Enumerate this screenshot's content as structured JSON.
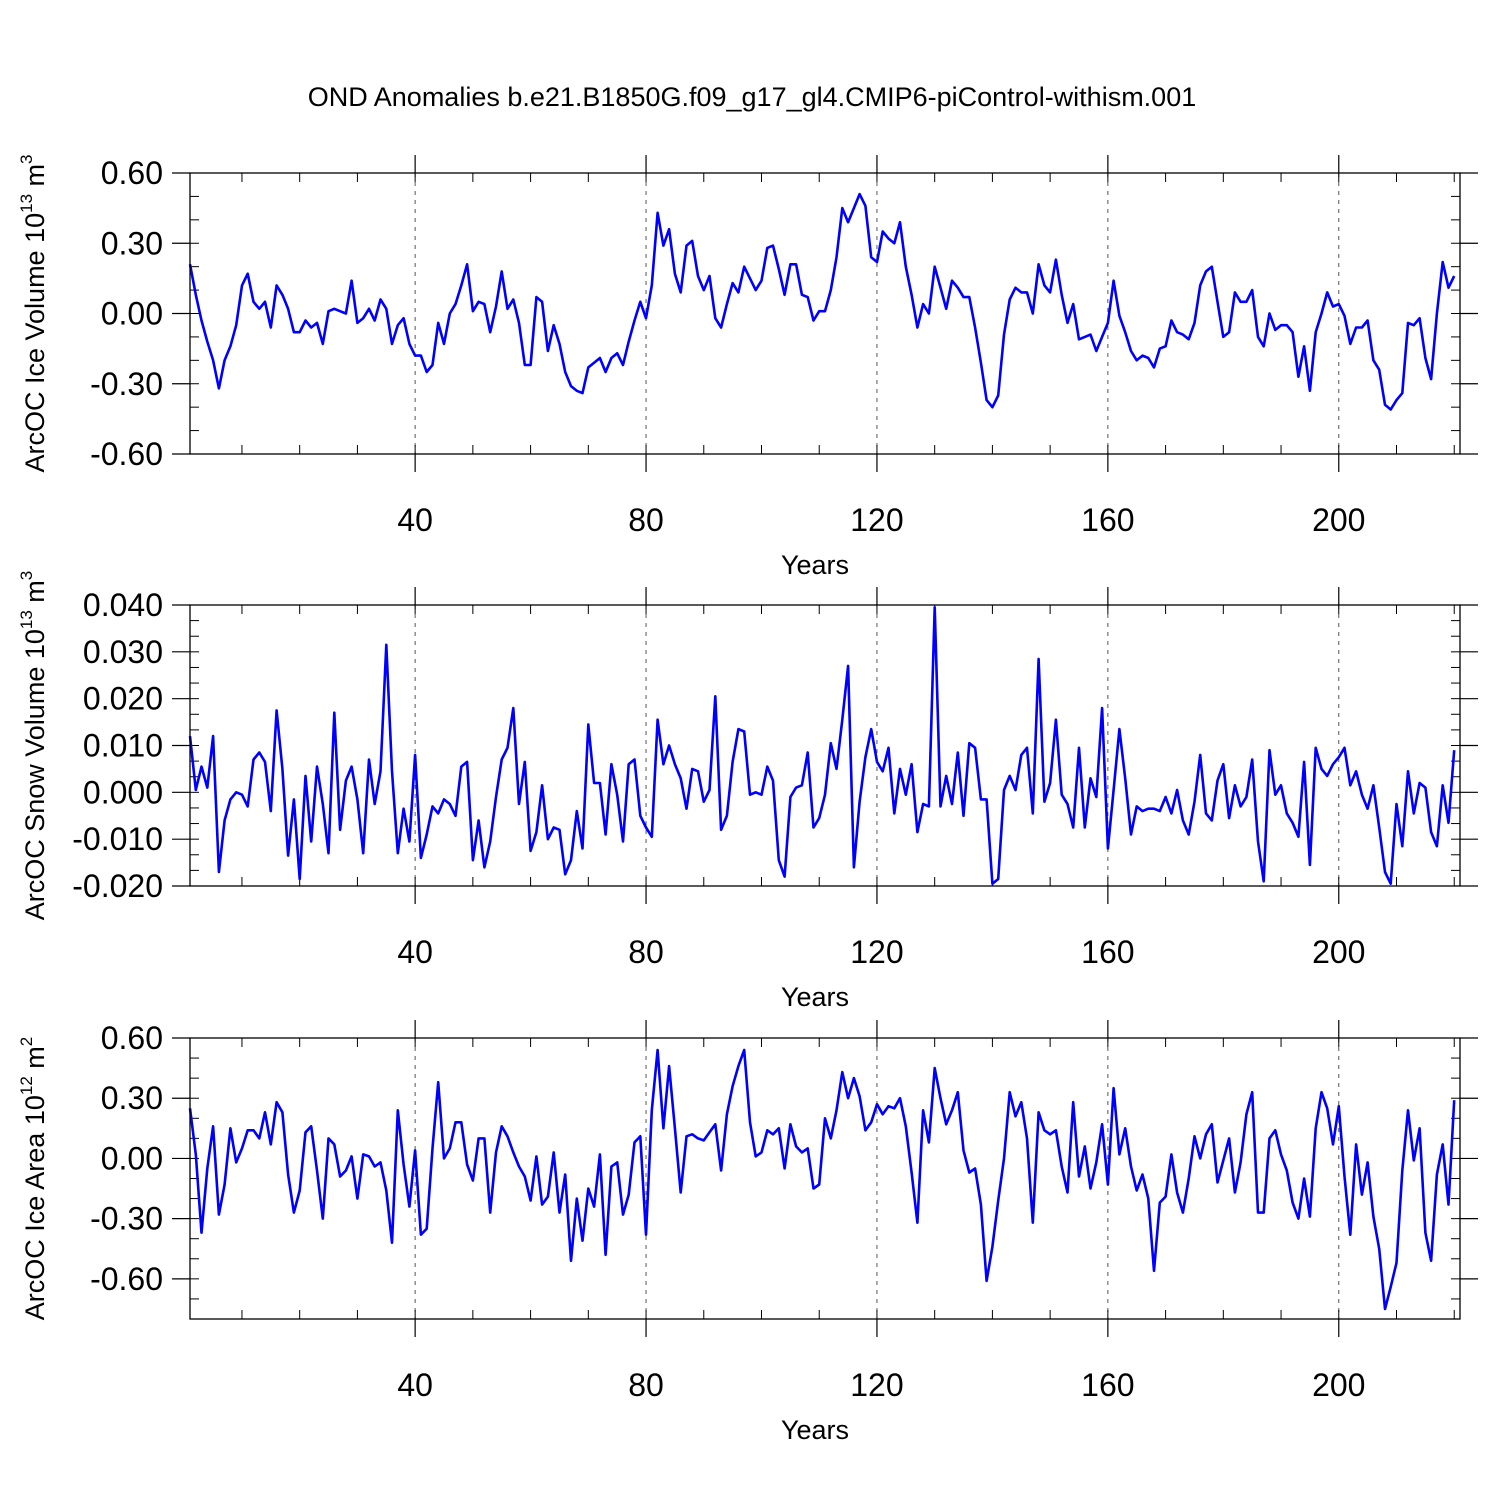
{
  "title": "OND Anomalies b.e21.B1850G.f09_g17_gl4.CMIP6-piControl-withism.001",
  "chart_data": [
    {
      "type": "line",
      "ylabel": "ArcOC Ice Volume 10",
      "ylabel_exp": "13",
      "ylabel_unit": " m",
      "ylabel_unit_exp": "3",
      "xlabel": "Years",
      "xlim": [
        1,
        221
      ],
      "ylim": [
        -0.6,
        0.6
      ],
      "yticks": [
        -0.6,
        -0.3,
        0.0,
        0.3,
        0.6
      ],
      "ytick_labels": [
        "-0.60",
        "-0.30",
        "0.00",
        "0.30",
        "0.60"
      ],
      "xticks": [
        40,
        80,
        120,
        160,
        200
      ],
      "xtick_labels": [
        "40",
        "80",
        "120",
        "160",
        "200"
      ],
      "grid_x": [
        40,
        80,
        120,
        160,
        200
      ],
      "series": [
        {
          "name": "Ice Volume",
          "color": "#0000ff",
          "x_start": 1,
          "values": [
            0.21,
            0.08,
            -0.03,
            -0.12,
            -0.2,
            -0.32,
            -0.2,
            -0.14,
            -0.05,
            0.12,
            0.17,
            0.05,
            0.02,
            0.05,
            -0.06,
            0.12,
            0.08,
            0.02,
            -0.08,
            -0.08,
            -0.03,
            -0.06,
            -0.04,
            -0.13,
            0.01,
            0.02,
            0.01,
            0.0,
            0.14,
            -0.04,
            -0.02,
            0.02,
            -0.03,
            0.06,
            0.02,
            -0.13,
            -0.05,
            -0.02,
            -0.13,
            -0.18,
            -0.18,
            -0.25,
            -0.22,
            -0.04,
            -0.13,
            0.0,
            0.04,
            0.12,
            0.21,
            0.01,
            0.05,
            0.04,
            -0.08,
            0.03,
            0.18,
            0.02,
            0.06,
            -0.04,
            -0.22,
            -0.22,
            0.07,
            0.05,
            -0.16,
            -0.05,
            -0.13,
            -0.25,
            -0.31,
            -0.33,
            -0.34,
            -0.23,
            -0.21,
            -0.19,
            -0.25,
            -0.19,
            -0.17,
            -0.22,
            -0.12,
            -0.03,
            0.05,
            -0.02,
            0.12,
            0.43,
            0.29,
            0.36,
            0.17,
            0.09,
            0.29,
            0.31,
            0.16,
            0.1,
            0.16,
            -0.02,
            -0.06,
            0.04,
            0.13,
            0.09,
            0.2,
            0.15,
            0.1,
            0.14,
            0.28,
            0.29,
            0.19,
            0.08,
            0.21,
            0.21,
            0.08,
            0.07,
            -0.03,
            0.01,
            0.01,
            0.1,
            0.24,
            0.45,
            0.39,
            0.45,
            0.51,
            0.46,
            0.24,
            0.22,
            0.35,
            0.32,
            0.3,
            0.39,
            0.2,
            0.08,
            -0.06,
            0.04,
            0.0,
            0.2,
            0.11,
            0.02,
            0.14,
            0.11,
            0.07,
            0.07,
            -0.06,
            -0.21,
            -0.37,
            -0.4,
            -0.35,
            -0.09,
            0.06,
            0.11,
            0.09,
            0.09,
            0.0,
            0.21,
            0.12,
            0.09,
            0.23,
            0.08,
            -0.04,
            0.04,
            -0.11,
            -0.1,
            -0.09,
            -0.16,
            -0.1,
            -0.04,
            0.14,
            -0.01,
            -0.08,
            -0.16,
            -0.2,
            -0.18,
            -0.19,
            -0.23,
            -0.15,
            -0.14,
            -0.03,
            -0.08,
            -0.09,
            -0.11,
            -0.04,
            0.12,
            0.18,
            0.2,
            0.05,
            -0.1,
            -0.08,
            0.09,
            0.05,
            0.05,
            0.1,
            -0.1,
            -0.14,
            0.0,
            -0.07,
            -0.05,
            -0.05,
            -0.08,
            -0.27,
            -0.14,
            -0.33,
            -0.08,
            0.0,
            0.09,
            0.03,
            0.04,
            -0.01,
            -0.13,
            -0.06,
            -0.06,
            -0.03,
            -0.2,
            -0.24,
            -0.39,
            -0.41,
            -0.37,
            -0.34,
            -0.04,
            -0.05,
            -0.02,
            -0.19,
            -0.28,
            0.0,
            0.22,
            0.11,
            0.16
          ]
        }
      ]
    },
    {
      "type": "line",
      "ylabel": "ArcOC Snow Volume 10",
      "ylabel_exp": "13",
      "ylabel_unit": " m",
      "ylabel_unit_exp": "3",
      "xlabel": "Years",
      "xlim": [
        1,
        221
      ],
      "ylim": [
        -0.02,
        0.04
      ],
      "yticks": [
        -0.02,
        -0.01,
        0.0,
        0.01,
        0.02,
        0.03,
        0.04
      ],
      "ytick_labels": [
        "-0.020",
        "-0.010",
        "0.000",
        "0.010",
        "0.020",
        "0.030",
        "0.040"
      ],
      "xticks": [
        40,
        80,
        120,
        160,
        200
      ],
      "xtick_labels": [
        "40",
        "80",
        "120",
        "160",
        "200"
      ],
      "grid_x": [
        40,
        80,
        120,
        160,
        200
      ],
      "series": [
        {
          "name": "Snow Volume",
          "color": "#0000ff",
          "x_start": 1,
          "values": [
            0.012,
            0.0005,
            0.0055,
            0.001,
            0.012,
            -0.017,
            -0.006,
            -0.0015,
            0.0,
            -0.0005,
            -0.003,
            0.007,
            0.0085,
            0.0065,
            -0.004,
            0.0175,
            0.005,
            -0.0135,
            -0.0015,
            -0.0185,
            0.0035,
            -0.0105,
            0.0055,
            -0.0025,
            -0.013,
            0.017,
            -0.008,
            0.0025,
            0.0055,
            -0.0015,
            -0.013,
            0.007,
            -0.0025,
            0.0045,
            0.0315,
            0.0045,
            -0.013,
            -0.0035,
            -0.0105,
            0.008,
            -0.014,
            -0.009,
            -0.003,
            -0.0045,
            -0.0015,
            -0.0025,
            -0.005,
            0.0055,
            0.0065,
            -0.0145,
            -0.006,
            -0.016,
            -0.0105,
            -0.001,
            0.007,
            0.0095,
            0.018,
            -0.0025,
            0.0065,
            -0.0125,
            -0.0085,
            0.0015,
            -0.01,
            -0.0075,
            -0.008,
            -0.0175,
            -0.0145,
            -0.004,
            -0.012,
            0.0145,
            0.002,
            0.002,
            -0.009,
            0.006,
            -0.0005,
            -0.0105,
            0.006,
            0.007,
            -0.005,
            -0.0075,
            -0.0095,
            0.0155,
            0.006,
            0.01,
            0.006,
            0.003,
            -0.0035,
            0.005,
            0.0045,
            -0.002,
            0.0005,
            0.0205,
            -0.008,
            -0.005,
            0.0065,
            0.0135,
            0.013,
            -0.0005,
            0.0,
            -0.0005,
            0.0055,
            0.0025,
            -0.0145,
            -0.018,
            -0.001,
            0.001,
            0.0015,
            0.0085,
            -0.0075,
            -0.0055,
            -0.0005,
            0.0105,
            0.005,
            0.0155,
            0.027,
            -0.016,
            -0.002,
            0.0075,
            0.0135,
            0.0065,
            0.0045,
            0.0095,
            -0.0045,
            0.005,
            -0.0005,
            0.006,
            -0.0085,
            -0.0025,
            -0.003,
            0.0395,
            -0.003,
            0.0035,
            -0.0025,
            0.0085,
            -0.005,
            0.0105,
            0.0095,
            -0.0015,
            -0.0015,
            -0.0195,
            -0.0185,
            0.0005,
            0.0035,
            0.0005,
            0.008,
            0.0095,
            -0.0045,
            0.0285,
            -0.002,
            0.002,
            0.0155,
            -0.0005,
            -0.0025,
            -0.0075,
            0.0095,
            -0.0075,
            0.003,
            -0.001,
            0.018,
            -0.012,
            0.0005,
            0.0135,
            0.003,
            -0.009,
            -0.003,
            -0.004,
            -0.0035,
            -0.0035,
            -0.004,
            -0.001,
            -0.0045,
            0.0005,
            -0.006,
            -0.009,
            -0.002,
            0.008,
            -0.0045,
            -0.006,
            0.0025,
            0.006,
            -0.0055,
            0.0015,
            -0.003,
            -0.001,
            0.007,
            -0.0105,
            -0.019,
            0.009,
            -0.0005,
            0.0015,
            -0.0045,
            -0.0065,
            -0.0095,
            0.0065,
            -0.0155,
            0.0095,
            0.005,
            0.0035,
            0.006,
            0.0075,
            0.0095,
            0.0015,
            0.0045,
            -0.0005,
            -0.0035,
            0.0015,
            -0.0075,
            -0.017,
            -0.0195,
            -0.0025,
            -0.0115,
            0.0045,
            -0.0045,
            0.002,
            0.001,
            -0.0085,
            -0.0115,
            0.0015,
            -0.0065,
            0.009
          ]
        }
      ]
    },
    {
      "type": "line",
      "ylabel": "ArcOC Ice Area 10",
      "ylabel_exp": "12",
      "ylabel_unit": " m",
      "ylabel_unit_exp": "2",
      "xlabel": "Years",
      "xlim": [
        1,
        221
      ],
      "ylim": [
        -0.8,
        0.6
      ],
      "yticks": [
        -0.6,
        -0.3,
        0.0,
        0.3,
        0.6
      ],
      "ytick_labels": [
        "-0.60",
        "-0.30",
        "0.00",
        "0.30",
        "0.60"
      ],
      "xticks": [
        40,
        80,
        120,
        160,
        200
      ],
      "xtick_labels": [
        "40",
        "80",
        "120",
        "160",
        "200"
      ],
      "grid_x": [
        40,
        80,
        120,
        160,
        200
      ],
      "series": [
        {
          "name": "Ice Area",
          "color": "#0000ff",
          "x_start": 1,
          "values": [
            0.25,
            0.02,
            -0.37,
            -0.05,
            0.16,
            -0.28,
            -0.13,
            0.15,
            -0.02,
            0.05,
            0.14,
            0.14,
            0.1,
            0.23,
            0.07,
            0.28,
            0.23,
            -0.08,
            -0.27,
            -0.16,
            0.13,
            0.16,
            -0.06,
            -0.3,
            0.1,
            0.07,
            -0.09,
            -0.06,
            0.01,
            -0.2,
            0.02,
            0.01,
            -0.04,
            -0.02,
            -0.16,
            -0.42,
            0.24,
            -0.03,
            -0.24,
            0.04,
            -0.38,
            -0.35,
            0.05,
            0.38,
            0.0,
            0.05,
            0.18,
            0.18,
            -0.03,
            -0.11,
            0.1,
            0.1,
            -0.27,
            0.03,
            0.16,
            0.11,
            0.03,
            -0.04,
            -0.09,
            -0.21,
            0.01,
            -0.23,
            -0.19,
            0.03,
            -0.27,
            -0.08,
            -0.51,
            -0.2,
            -0.41,
            -0.15,
            -0.24,
            0.02,
            -0.48,
            -0.04,
            -0.02,
            -0.28,
            -0.18,
            0.08,
            0.11,
            -0.38,
            0.24,
            0.54,
            0.15,
            0.46,
            0.15,
            -0.17,
            0.11,
            0.12,
            0.1,
            0.09,
            0.13,
            0.17,
            -0.06,
            0.22,
            0.36,
            0.46,
            0.54,
            0.18,
            0.01,
            0.03,
            0.14,
            0.12,
            0.15,
            -0.05,
            0.17,
            0.06,
            0.03,
            0.05,
            -0.15,
            -0.13,
            0.2,
            0.1,
            0.24,
            0.43,
            0.3,
            0.4,
            0.31,
            0.14,
            0.18,
            0.27,
            0.22,
            0.26,
            0.25,
            0.3,
            0.16,
            -0.07,
            -0.32,
            0.24,
            0.08,
            0.45,
            0.3,
            0.17,
            0.24,
            0.33,
            0.04,
            -0.07,
            -0.05,
            -0.23,
            -0.61,
            -0.44,
            -0.21,
            0.0,
            0.33,
            0.21,
            0.28,
            0.1,
            -0.32,
            0.23,
            0.14,
            0.12,
            0.14,
            -0.04,
            -0.17,
            0.28,
            -0.09,
            0.06,
            -0.15,
            -0.02,
            0.17,
            -0.13,
            0.35,
            0.02,
            0.15,
            -0.04,
            -0.16,
            -0.08,
            -0.2,
            -0.56,
            -0.22,
            -0.19,
            0.02,
            -0.17,
            -0.27,
            -0.1,
            0.11,
            0.0,
            0.12,
            0.17,
            -0.12,
            -0.01,
            0.1,
            -0.17,
            -0.02,
            0.22,
            0.33,
            -0.27,
            -0.27,
            0.1,
            0.14,
            0.02,
            -0.06,
            -0.22,
            -0.3,
            -0.1,
            -0.29,
            0.15,
            0.33,
            0.25,
            0.07,
            0.26,
            -0.09,
            -0.38,
            0.07,
            -0.18,
            -0.02,
            -0.29,
            -0.45,
            -0.75,
            -0.64,
            -0.52,
            -0.06,
            0.24,
            -0.01,
            0.15,
            -0.37,
            -0.51,
            -0.08,
            0.07,
            -0.23,
            0.29
          ]
        }
      ]
    }
  ]
}
